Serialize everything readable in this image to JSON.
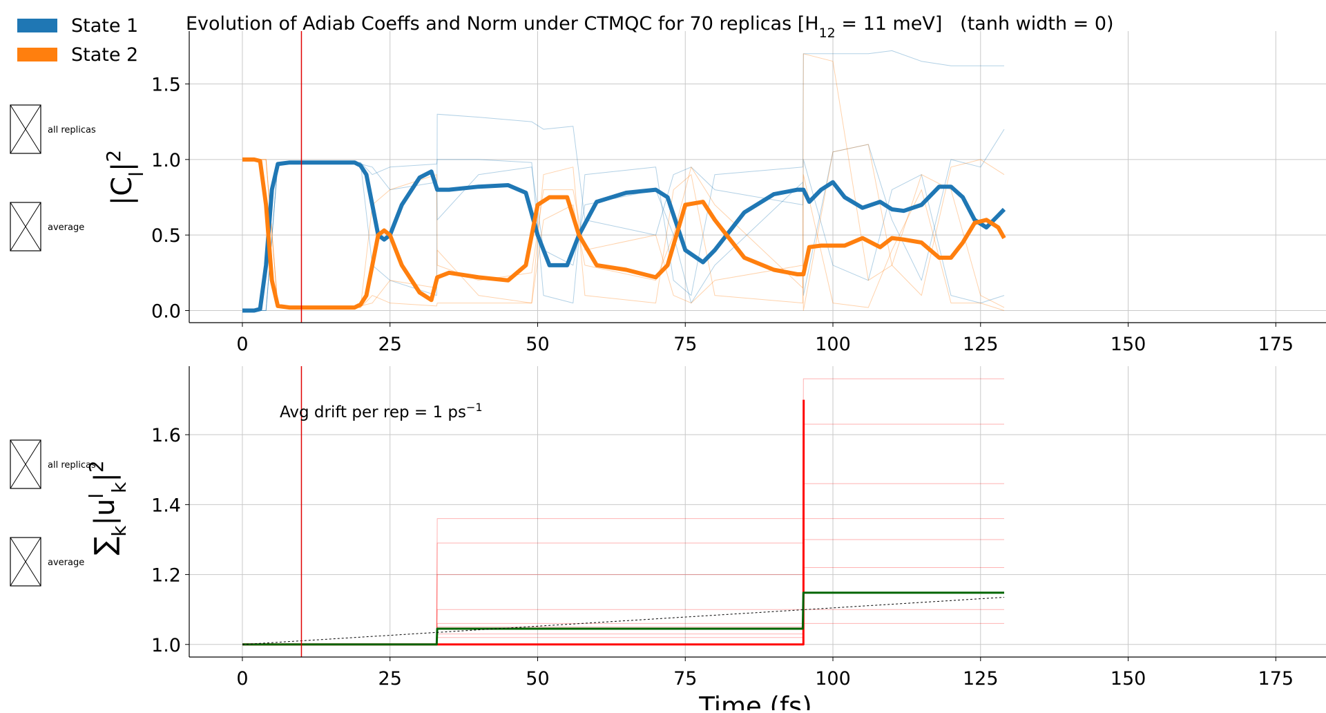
{
  "chart_data": [
    {
      "type": "line",
      "title": [
        {
          "t": "Evolution of Adiab Coeffs and Norm under CTMQC for 70 replicas [H"
        },
        {
          "t": "12",
          "sub": true
        },
        {
          "t": " = 11 meV]   (tanh width = 0)"
        }
      ],
      "ylabel": [
        {
          "t": "|C"
        },
        {
          "t": "l",
          "sub": true
        },
        {
          "t": "|"
        },
        {
          "t": "2",
          "sup": true
        }
      ],
      "side_legend": [
        "all replicas",
        "average"
      ],
      "legend": "upper left",
      "grid": true,
      "vline": 10,
      "vline_color": "#e00000",
      "xlim": [
        -9,
        183.5
      ],
      "ylim": [
        -0.08,
        1.85
      ],
      "xticks": [
        0,
        25,
        50,
        75,
        100,
        125,
        150,
        175
      ],
      "yticks": [
        {
          "value": 0,
          "label": "0.0"
        },
        {
          "value": 0.5,
          "label": "0.5"
        },
        {
          "value": 1,
          "label": "1.0"
        },
        {
          "value": 1.5,
          "label": "1.5"
        }
      ],
      "series": [
        {
          "color": "#1f77b4",
          "width": 1,
          "opacity": 0.35,
          "x": [
            0,
            4,
            6,
            20,
            22,
            25,
            32.9,
            33,
            40,
            49,
            51,
            56,
            58,
            70,
            73,
            76,
            80,
            94.9,
            95,
            100,
            106,
            110,
            115,
            120,
            125,
            129
          ],
          "values": [
            0,
            0,
            0.98,
            0.98,
            0.9,
            0.95,
            0.97,
            1.0,
            1.0,
            0.98,
            0.1,
            0.05,
            0.9,
            0.95,
            0.2,
            0.1,
            0.9,
            0.95,
            1.7,
            1.7,
            1.7,
            1.72,
            1.65,
            1.62,
            1.62,
            1.62
          ]
        },
        {
          "color": "#1f77b4",
          "width": 1,
          "opacity": 0.35,
          "x": [
            0,
            4,
            6,
            20,
            22,
            25,
            32.9,
            33,
            40,
            49,
            51,
            56,
            58,
            70,
            73,
            76,
            80,
            94.9,
            95,
            100,
            106,
            110,
            115,
            120,
            125,
            129
          ],
          "values": [
            0,
            0,
            0.98,
            0.98,
            0.3,
            0.2,
            0.1,
            1.3,
            1.28,
            1.25,
            1.2,
            1.22,
            0.6,
            0.5,
            0.9,
            0.95,
            0.8,
            0.7,
            1.0,
            0.3,
            0.2,
            0.8,
            0.9,
            0.1,
            0.05,
            0.1
          ]
        },
        {
          "color": "#1f77b4",
          "width": 1,
          "opacity": 0.35,
          "x": [
            0,
            4,
            6,
            20,
            22,
            25,
            32.9,
            33,
            40,
            49,
            51,
            56,
            58,
            70,
            73,
            76,
            80,
            94.9,
            95,
            100,
            106,
            110,
            115,
            120,
            125,
            129
          ],
          "values": [
            0,
            0,
            0.97,
            0.97,
            0.95,
            0.8,
            0.85,
            0.6,
            0.9,
            0.95,
            0.4,
            0.3,
            0.7,
            0.8,
            0.5,
            0.05,
            0.3,
            0.85,
            0.1,
            1.05,
            1.1,
            0.6,
            0.2,
            1.0,
            0.95,
            1.2
          ]
        },
        {
          "color": "#ff7f0e",
          "width": 1,
          "opacity": 0.35,
          "x": [
            0,
            4,
            6,
            20,
            22,
            25,
            32.9,
            33,
            40,
            49,
            51,
            56,
            58,
            70,
            73,
            76,
            80,
            94.9,
            95,
            100,
            106,
            110,
            115,
            120,
            125,
            129
          ],
          "values": [
            1,
            1,
            0.02,
            0.02,
            0.1,
            0.05,
            0.03,
            0.05,
            0.05,
            0.05,
            0.9,
            0.95,
            0.1,
            0.05,
            0.8,
            0.9,
            0.1,
            0.05,
            1.7,
            1.65,
            0.2,
            0.3,
            0.9,
            0.8,
            0.1,
            0.02
          ]
        },
        {
          "color": "#ff7f0e",
          "width": 1,
          "opacity": 0.35,
          "x": [
            0,
            4,
            6,
            20,
            22,
            25,
            32.9,
            33,
            40,
            49,
            51,
            56,
            58,
            70,
            73,
            76,
            80,
            94.9,
            95,
            100,
            106,
            110,
            115,
            120,
            125,
            129
          ],
          "values": [
            1,
            1,
            0.02,
            0.02,
            0.7,
            0.8,
            0.9,
            0.3,
            0.2,
            0.25,
            0.8,
            0.8,
            0.4,
            0.5,
            0.1,
            0.05,
            0.2,
            0.3,
            0.0,
            1.05,
            1.1,
            0.3,
            0.1,
            0.95,
            1.0,
            0.9
          ]
        },
        {
          "color": "#ff7f0e",
          "width": 1,
          "opacity": 0.35,
          "x": [
            0,
            4,
            6,
            20,
            22,
            25,
            32.9,
            33,
            40,
            49,
            51,
            56,
            58,
            70,
            73,
            76,
            80,
            94.9,
            95,
            100,
            106,
            110,
            115,
            120,
            125,
            129
          ],
          "values": [
            1,
            1,
            0.03,
            0.03,
            0.05,
            0.2,
            0.15,
            0.4,
            0.1,
            0.05,
            0.6,
            0.7,
            0.3,
            0.2,
            0.5,
            0.95,
            0.7,
            0.15,
            0.9,
            0.05,
            0.02,
            0.4,
            0.8,
            0.05,
            0.05,
            0.0
          ]
        },
        {
          "name": "State 1",
          "color": "#1f77b4",
          "width": 6,
          "opacity": 1,
          "x": [
            0,
            2,
            3,
            4,
            5,
            6,
            8,
            10,
            15,
            19,
            20,
            21,
            22,
            23,
            24,
            25,
            27,
            30,
            32,
            33,
            35,
            40,
            45,
            48,
            50,
            52,
            55,
            57,
            60,
            65,
            70,
            72,
            75,
            78,
            80,
            85,
            90,
            94,
            95,
            96,
            98,
            100,
            102,
            105,
            108,
            110,
            112,
            115,
            118,
            120,
            122,
            124,
            126,
            128,
            129
          ],
          "values": [
            0,
            0,
            0.01,
            0.3,
            0.8,
            0.97,
            0.98,
            0.98,
            0.98,
            0.98,
            0.96,
            0.9,
            0.7,
            0.5,
            0.47,
            0.5,
            0.7,
            0.88,
            0.92,
            0.8,
            0.8,
            0.82,
            0.83,
            0.78,
            0.5,
            0.3,
            0.3,
            0.5,
            0.72,
            0.78,
            0.8,
            0.75,
            0.4,
            0.32,
            0.4,
            0.65,
            0.77,
            0.8,
            0.8,
            0.72,
            0.8,
            0.85,
            0.75,
            0.68,
            0.72,
            0.67,
            0.66,
            0.7,
            0.82,
            0.82,
            0.75,
            0.6,
            0.55,
            0.63,
            0.67
          ]
        },
        {
          "name": "State 2",
          "color": "#ff7f0e",
          "width": 6,
          "opacity": 1,
          "x": [
            0,
            2,
            3,
            4,
            5,
            6,
            8,
            10,
            15,
            19,
            20,
            21,
            22,
            23,
            24,
            25,
            27,
            30,
            32,
            33,
            35,
            40,
            45,
            48,
            50,
            52,
            55,
            57,
            60,
            65,
            70,
            72,
            75,
            78,
            80,
            85,
            90,
            94,
            95,
            96,
            98,
            100,
            102,
            105,
            108,
            110,
            112,
            115,
            118,
            120,
            122,
            124,
            126,
            128,
            129
          ],
          "values": [
            1,
            1,
            0.99,
            0.7,
            0.2,
            0.03,
            0.02,
            0.02,
            0.02,
            0.02,
            0.04,
            0.1,
            0.3,
            0.5,
            0.53,
            0.5,
            0.3,
            0.12,
            0.07,
            0.22,
            0.25,
            0.22,
            0.2,
            0.3,
            0.7,
            0.75,
            0.75,
            0.5,
            0.3,
            0.27,
            0.22,
            0.3,
            0.7,
            0.72,
            0.6,
            0.35,
            0.27,
            0.24,
            0.24,
            0.42,
            0.43,
            0.43,
            0.43,
            0.48,
            0.42,
            0.48,
            0.47,
            0.45,
            0.35,
            0.35,
            0.45,
            0.58,
            0.6,
            0.55,
            0.48
          ]
        }
      ]
    },
    {
      "type": "line",
      "ylabel": [
        {
          "t": "∑"
        },
        {
          "t": "k",
          "sub": true
        },
        {
          "t": "|u"
        },
        {
          "t": "l",
          "sup": true
        },
        {
          "t": "k",
          "sub": true
        },
        {
          "t": "|"
        },
        {
          "t": "2",
          "sup": true
        }
      ],
      "xlabel": "Time (fs)",
      "annotation": [
        {
          "t": "Avg drift per rep = 1 ps"
        },
        {
          "t": "−1",
          "sup": true
        }
      ],
      "side_legend": [
        "all replicas",
        "average"
      ],
      "grid": true,
      "vline": 10,
      "vline_color": "#e00000",
      "xlim": [
        -9,
        183.5
      ],
      "ylim": [
        0.964,
        1.796
      ],
      "xticks": [
        0,
        25,
        50,
        75,
        100,
        125,
        150,
        175
      ],
      "yticks": [
        {
          "value": 1,
          "label": "1.0"
        },
        {
          "value": 1.2,
          "label": "1.2"
        },
        {
          "value": 1.4,
          "label": "1.4"
        },
        {
          "value": 1.6,
          "label": "1.6"
        }
      ],
      "series": [
        {
          "color": "#ff0000",
          "width": 1,
          "opacity": 0.3,
          "x": [
            0,
            32.9,
            33,
            94.9,
            95,
            129
          ],
          "values": [
            1,
            1,
            1.36,
            1.36,
            1.36,
            1.36
          ]
        },
        {
          "color": "#ff0000",
          "width": 1,
          "opacity": 0.3,
          "x": [
            0,
            32.9,
            33,
            94.9,
            95,
            129
          ],
          "values": [
            1,
            1,
            1.29,
            1.29,
            1.63,
            1.63
          ]
        },
        {
          "color": "#ff0000",
          "width": 1,
          "opacity": 0.3,
          "x": [
            0,
            32.9,
            33,
            94.9,
            95,
            129
          ],
          "values": [
            1,
            1,
            1.05,
            1.05,
            1.76,
            1.76
          ]
        },
        {
          "color": "#ff0000",
          "width": 1,
          "opacity": 0.3,
          "x": [
            0,
            32.9,
            33,
            94.9,
            95,
            129
          ],
          "values": [
            1,
            1,
            1.2,
            1.2,
            1.46,
            1.46
          ]
        },
        {
          "color": "#ff0000",
          "width": 1,
          "opacity": 0.3,
          "x": [
            0,
            32.9,
            33,
            94.9,
            95,
            129
          ],
          "values": [
            1,
            1,
            1.1,
            1.1,
            1.3,
            1.3
          ]
        },
        {
          "color": "#ff0000",
          "width": 1,
          "opacity": 0.3,
          "x": [
            0,
            32.9,
            33,
            94.9,
            95,
            129
          ],
          "values": [
            1,
            1,
            1.06,
            1.06,
            1.22,
            1.22
          ]
        },
        {
          "color": "#ff0000",
          "width": 1,
          "opacity": 0.3,
          "x": [
            0,
            32.9,
            33,
            94.9,
            95,
            129
          ],
          "values": [
            1,
            1,
            1.02,
            1.02,
            1.1,
            1.1
          ]
        },
        {
          "color": "#ff0000",
          "width": 1,
          "opacity": 0.3,
          "x": [
            0,
            32.9,
            33,
            94.9,
            95,
            129
          ],
          "values": [
            1,
            1,
            1.03,
            1.03,
            1.06,
            1.06
          ]
        },
        {
          "color": "#ff0000",
          "width": 3,
          "opacity": 1,
          "x": [
            0,
            94.9,
            95,
            95.05
          ],
          "values": [
            1,
            1,
            1.0,
            1.7
          ]
        },
        {
          "color": "#006400",
          "width": 3,
          "opacity": 1,
          "x": [
            0,
            32.9,
            33,
            94.9,
            95,
            129
          ],
          "values": [
            1,
            1,
            1.045,
            1.045,
            1.148,
            1.148
          ]
        },
        {
          "color": "#000000",
          "width": 1,
          "opacity": 1,
          "dash": true,
          "x": [
            0,
            129
          ],
          "values": [
            1,
            1.135
          ]
        }
      ]
    }
  ]
}
